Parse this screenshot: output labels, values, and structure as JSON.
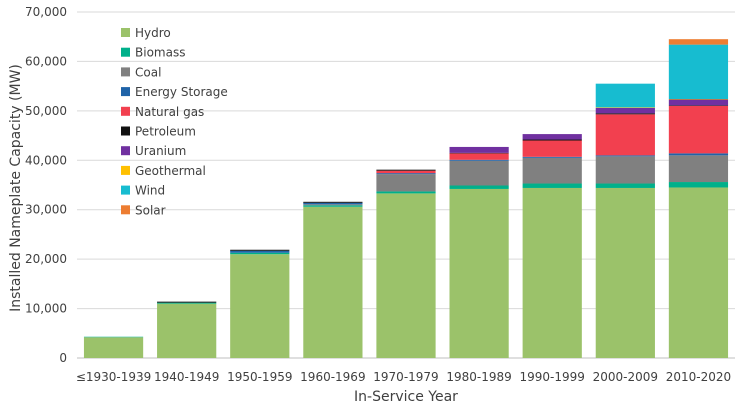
{
  "chart_data": {
    "type": "bar",
    "stacked": true,
    "title": "",
    "xlabel": "In-Service Year",
    "ylabel": "Installed Nameplate Capacity (MW)",
    "ylim": [
      0,
      70000
    ],
    "yticks": [
      "0",
      "10,000",
      "20,000",
      "30,000",
      "40,000",
      "50,000",
      "60,000",
      "70,000"
    ],
    "grid": true,
    "legend_position": "top-left",
    "categories": [
      "≤1930-1939",
      "1940-1949",
      "1950-1959",
      "1960-1969",
      "1970-1979",
      "1980-1989",
      "1990-1999",
      "2000-2009",
      "2010-2020"
    ],
    "series": [
      {
        "name": "Hydro",
        "color": "#9bc26a",
        "values": [
          4200,
          11000,
          21000,
          30600,
          33300,
          34200,
          34400,
          34400,
          34500
        ]
      },
      {
        "name": "Biomass",
        "color": "#00b08a",
        "values": [
          100,
          200,
          300,
          300,
          400,
          700,
          900,
          900,
          1100
        ]
      },
      {
        "name": "Coal",
        "color": "#808080",
        "values": [
          0,
          0,
          0,
          200,
          3500,
          5000,
          5200,
          5500,
          5400
        ]
      },
      {
        "name": "Energy Storage",
        "color": "#1f63a8",
        "values": [
          0,
          0,
          400,
          300,
          200,
          200,
          200,
          200,
          400
        ]
      },
      {
        "name": "Natural gas",
        "color": "#f2404f",
        "values": [
          0,
          0,
          0,
          0,
          500,
          1300,
          3300,
          8300,
          9600
        ]
      },
      {
        "name": "Petroleum",
        "color": "#111111",
        "values": [
          0,
          200,
          200,
          200,
          200,
          100,
          200,
          200,
          100
        ]
      },
      {
        "name": "Uranium",
        "color": "#7030a0",
        "values": [
          0,
          0,
          0,
          0,
          0,
          1200,
          1100,
          1100,
          1200
        ]
      },
      {
        "name": "Geothermal",
        "color": "#ffc000",
        "values": [
          0,
          0,
          0,
          0,
          0,
          0,
          0,
          100,
          100
        ]
      },
      {
        "name": "Wind",
        "color": "#17bcd0",
        "values": [
          0,
          0,
          0,
          0,
          0,
          0,
          0,
          4800,
          11000
        ]
      },
      {
        "name": "Solar",
        "color": "#ed7d31",
        "values": [
          0,
          0,
          0,
          0,
          0,
          0,
          0,
          0,
          1100
        ]
      }
    ]
  }
}
